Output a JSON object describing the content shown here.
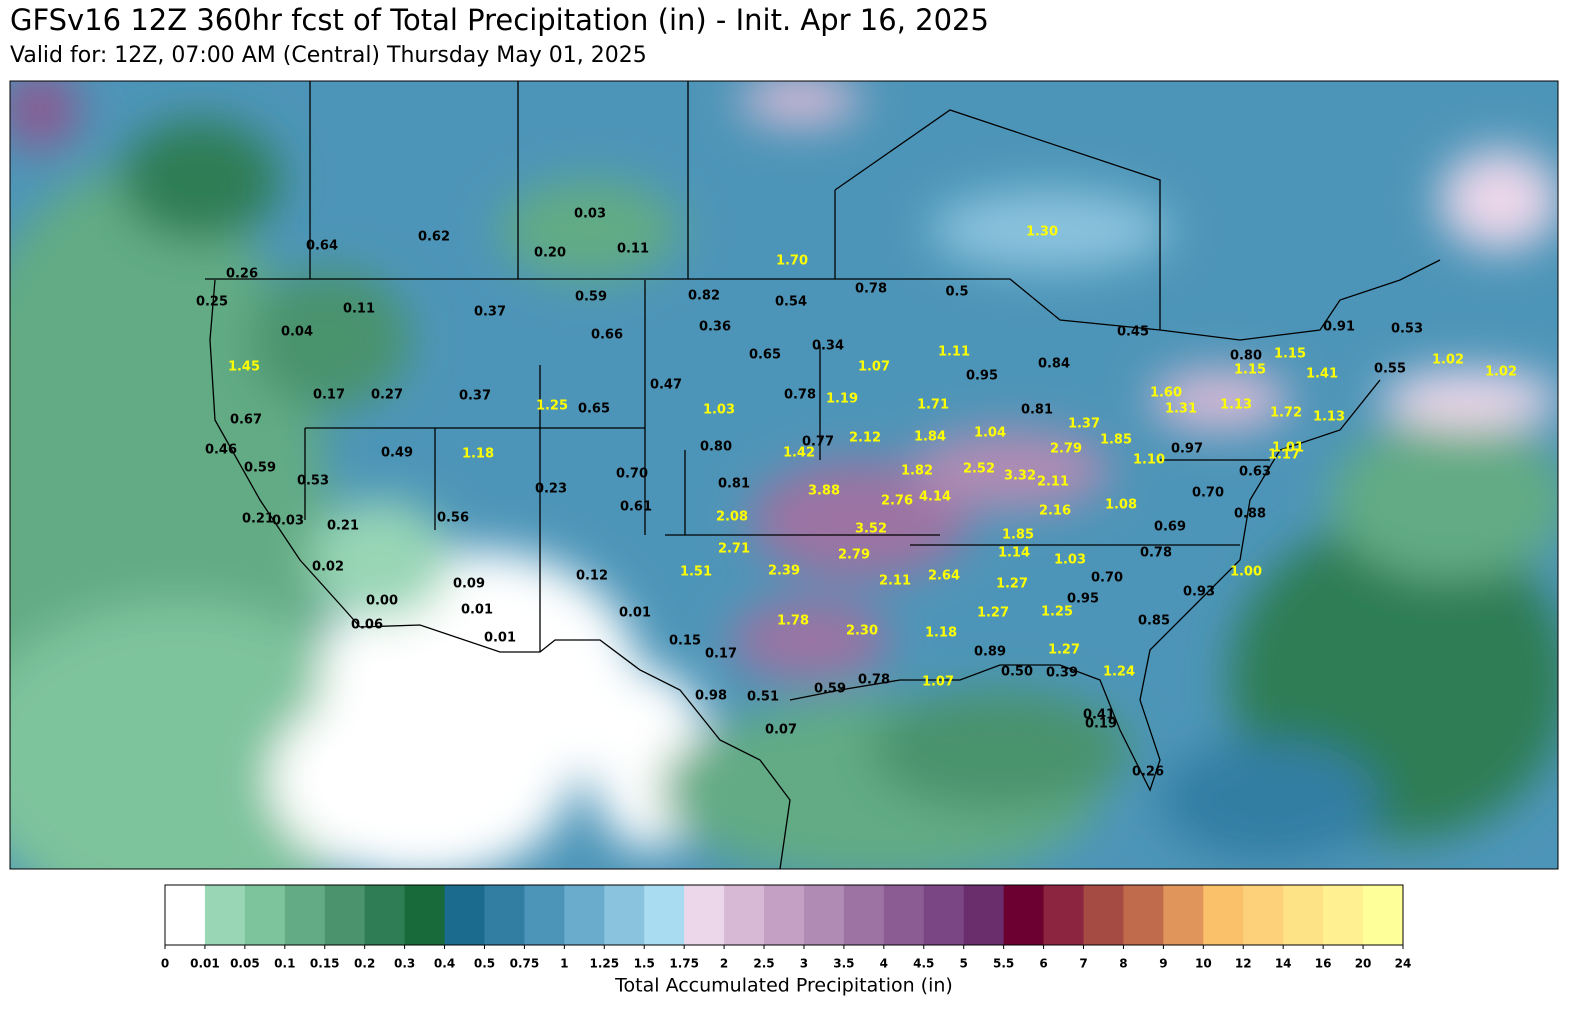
{
  "header": {
    "title": "GFSv16 12Z 360hr fcst of Total Precipitation (in) - Init. Apr 16, 2025",
    "subtitle": "Valid for: 12Z, 07:00 AM (Central) Thursday May 01, 2025"
  },
  "colorbar": {
    "label": "Total Accumulated Precipitation (in)",
    "ticks": [
      0,
      0.01,
      0.05,
      0.1,
      0.15,
      0.2,
      0.3,
      0.4,
      0.5,
      0.75,
      1,
      1.25,
      1.5,
      1.75,
      2,
      2.5,
      3,
      3.5,
      4,
      4.5,
      5,
      5.5,
      6,
      7,
      8,
      9,
      10,
      12,
      14,
      16,
      20,
      24
    ],
    "colors": [
      "#ffffff",
      "#98d6b5",
      "#7dc39c",
      "#62ab84",
      "#4a936d",
      "#2f7d55",
      "#186a3b",
      "#1a6b8e",
      "#327ea3",
      "#4d95b8",
      "#6aaccb",
      "#8ac3dd",
      "#a9dcf0",
      "#ecd7ea",
      "#d7b9d6",
      "#c4a0c5",
      "#b08bb3",
      "#9c73a3",
      "#8a5c93",
      "#7b4684",
      "#6a2e6c",
      "#6c0030",
      "#8c2540",
      "#a54b44",
      "#c06c4c",
      "#e0955a",
      "#fac06a",
      "#fdd17a",
      "#fee286",
      "#fff092",
      "#ffff99"
    ]
  },
  "labels": [
    {
      "text": "0.03",
      "color": "#000000"
    },
    {
      "text": "0.62",
      "color": "#000000"
    },
    {
      "text": "0.64",
      "color": "#000000"
    },
    {
      "text": "0.20",
      "color": "#000000"
    },
    {
      "text": "0.11",
      "color": "#000000"
    },
    {
      "text": "1.30",
      "color": "#ffff00"
    },
    {
      "text": "1.70",
      "color": "#ffff00"
    },
    {
      "text": "0.26",
      "color": "#000000"
    },
    {
      "text": "0.25",
      "color": "#000000"
    },
    {
      "text": "0.11",
      "color": "#000000"
    },
    {
      "text": "0.37",
      "color": "#000000"
    },
    {
      "text": "0.59",
      "color": "#000000"
    },
    {
      "text": "0.82",
      "color": "#000000"
    },
    {
      "text": "0.54",
      "color": "#000000"
    },
    {
      "text": "0.78",
      "color": "#000000"
    },
    {
      "text": "0.5",
      "color": "#000000"
    },
    {
      "text": "0.04",
      "color": "#000000"
    },
    {
      "text": "0.36",
      "color": "#000000"
    },
    {
      "text": "0.66",
      "color": "#000000"
    },
    {
      "text": "0.34",
      "color": "#000000"
    },
    {
      "text": "0.65",
      "color": "#000000"
    },
    {
      "text": "1.07",
      "color": "#ffff00"
    },
    {
      "text": "1.11",
      "color": "#ffff00"
    },
    {
      "text": "0.84",
      "color": "#000000"
    },
    {
      "text": "0.95",
      "color": "#000000"
    },
    {
      "text": "0.45",
      "color": "#000000"
    },
    {
      "text": "0.91",
      "color": "#000000"
    },
    {
      "text": "0.53",
      "color": "#000000"
    },
    {
      "text": "0.80",
      "color": "#000000"
    },
    {
      "text": "1.15",
      "color": "#ffff00"
    },
    {
      "text": "1.45",
      "color": "#ffff00"
    },
    {
      "text": "0.47",
      "color": "#000000"
    },
    {
      "text": "1.15",
      "color": "#ffff00"
    },
    {
      "text": "1.41",
      "color": "#ffff00"
    },
    {
      "text": "0.55",
      "color": "#000000"
    },
    {
      "text": "1.02",
      "color": "#ffff00"
    },
    {
      "text": "1.02",
      "color": "#ffff00"
    },
    {
      "text": "0.17",
      "color": "#000000"
    },
    {
      "text": "0.27",
      "color": "#000000"
    },
    {
      "text": "0.37",
      "color": "#000000"
    },
    {
      "text": "1.25",
      "color": "#ffff00"
    },
    {
      "text": "0.65",
      "color": "#000000"
    },
    {
      "text": "1.03",
      "color": "#ffff00"
    },
    {
      "text": "0.78",
      "color": "#000000"
    },
    {
      "text": "1.19",
      "color": "#ffff00"
    },
    {
      "text": "1.71",
      "color": "#ffff00"
    },
    {
      "text": "0.81",
      "color": "#000000"
    },
    {
      "text": "1.60",
      "color": "#ffff00"
    },
    {
      "text": "1.31",
      "color": "#ffff00"
    },
    {
      "text": "1.13",
      "color": "#ffff00"
    },
    {
      "text": "1.72",
      "color": "#ffff00"
    },
    {
      "text": "1.13",
      "color": "#ffff00"
    },
    {
      "text": "0.67",
      "color": "#000000"
    },
    {
      "text": "0.46",
      "color": "#000000"
    },
    {
      "text": "1.37",
      "color": "#ffff00"
    },
    {
      "text": "1.04",
      "color": "#ffff00"
    },
    {
      "text": "2.12",
      "color": "#ffff00"
    },
    {
      "text": "1.84",
      "color": "#ffff00"
    },
    {
      "text": "0.77",
      "color": "#000000"
    },
    {
      "text": "1.85",
      "color": "#ffff00"
    },
    {
      "text": "2.79",
      "color": "#ffff00"
    },
    {
      "text": "0.97",
      "color": "#000000"
    },
    {
      "text": "1.01",
      "color": "#ffff00"
    },
    {
      "text": "1.17",
      "color": "#ffff00"
    },
    {
      "text": "0.49",
      "color": "#000000"
    },
    {
      "text": "1.18",
      "color": "#ffff00"
    },
    {
      "text": "0.80",
      "color": "#000000"
    },
    {
      "text": "1.42",
      "color": "#ffff00"
    },
    {
      "text": "1.10",
      "color": "#ffff00"
    },
    {
      "text": "0.59",
      "color": "#000000"
    },
    {
      "text": "0.53",
      "color": "#000000"
    },
    {
      "text": "0.70",
      "color": "#000000"
    },
    {
      "text": "0.81",
      "color": "#000000"
    },
    {
      "text": "1.82",
      "color": "#ffff00"
    },
    {
      "text": "2.52",
      "color": "#ffff00"
    },
    {
      "text": "3.32",
      "color": "#ffff00"
    },
    {
      "text": "2.11",
      "color": "#ffff00"
    },
    {
      "text": "0.63",
      "color": "#000000"
    },
    {
      "text": "0.23",
      "color": "#000000"
    },
    {
      "text": "3.88",
      "color": "#ffff00"
    },
    {
      "text": "2.76",
      "color": "#ffff00"
    },
    {
      "text": "4.14",
      "color": "#ffff00"
    },
    {
      "text": "0.70",
      "color": "#000000"
    },
    {
      "text": "1.08",
      "color": "#ffff00"
    },
    {
      "text": "0.21",
      "color": "#000000"
    },
    {
      "text": "0.03",
      "color": "#000000"
    },
    {
      "text": "0.21",
      "color": "#000000"
    },
    {
      "text": "0.56",
      "color": "#000000"
    },
    {
      "text": "0.61",
      "color": "#000000"
    },
    {
      "text": "2.08",
      "color": "#ffff00"
    },
    {
      "text": "2.16",
      "color": "#ffff00"
    },
    {
      "text": "0.88",
      "color": "#000000"
    },
    {
      "text": "3.52",
      "color": "#ffff00"
    },
    {
      "text": "0.69",
      "color": "#000000"
    },
    {
      "text": "1.85",
      "color": "#ffff00"
    },
    {
      "text": "2.71",
      "color": "#ffff00"
    },
    {
      "text": "2.79",
      "color": "#ffff00"
    },
    {
      "text": "1.14",
      "color": "#ffff00"
    },
    {
      "text": "1.03",
      "color": "#ffff00"
    },
    {
      "text": "0.78",
      "color": "#000000"
    },
    {
      "text": "0.02",
      "color": "#000000"
    },
    {
      "text": "1.51",
      "color": "#ffff00"
    },
    {
      "text": "2.39",
      "color": "#ffff00"
    },
    {
      "text": "2.11",
      "color": "#ffff00"
    },
    {
      "text": "2.64",
      "color": "#ffff00"
    },
    {
      "text": "1.27",
      "color": "#ffff00"
    },
    {
      "text": "0.70",
      "color": "#000000"
    },
    {
      "text": "1.00",
      "color": "#ffff00"
    },
    {
      "text": "0.12",
      "color": "#000000"
    },
    {
      "text": "0.09",
      "color": "#000000"
    },
    {
      "text": "0.00",
      "color": "#000000"
    },
    {
      "text": "0.01",
      "color": "#000000"
    },
    {
      "text": "0.01",
      "color": "#000000"
    },
    {
      "text": "0.95",
      "color": "#000000"
    },
    {
      "text": "0.93",
      "color": "#000000"
    },
    {
      "text": "1.27",
      "color": "#ffff00"
    },
    {
      "text": "1.25",
      "color": "#ffff00"
    },
    {
      "text": "0.06",
      "color": "#000000"
    },
    {
      "text": "1.78",
      "color": "#ffff00"
    },
    {
      "text": "2.30",
      "color": "#ffff00"
    },
    {
      "text": "1.18",
      "color": "#ffff00"
    },
    {
      "text": "0.85",
      "color": "#000000"
    },
    {
      "text": "0.01",
      "color": "#000000"
    },
    {
      "text": "0.15",
      "color": "#000000"
    },
    {
      "text": "0.17",
      "color": "#000000"
    },
    {
      "text": "0.89",
      "color": "#000000"
    },
    {
      "text": "1.27",
      "color": "#ffff00"
    },
    {
      "text": "0.50",
      "color": "#000000"
    },
    {
      "text": "0.39",
      "color": "#000000"
    },
    {
      "text": "1.24",
      "color": "#ffff00"
    },
    {
      "text": "0.98",
      "color": "#000000"
    },
    {
      "text": "0.51",
      "color": "#000000"
    },
    {
      "text": "0.59",
      "color": "#000000"
    },
    {
      "text": "0.78",
      "color": "#000000"
    },
    {
      "text": "1.07",
      "color": "#ffff00"
    },
    {
      "text": "0.41",
      "color": "#000000"
    },
    {
      "text": "0.19",
      "color": "#000000"
    },
    {
      "text": "0.07",
      "color": "#000000"
    },
    {
      "text": "0.26",
      "color": "#000000"
    }
  ]
}
